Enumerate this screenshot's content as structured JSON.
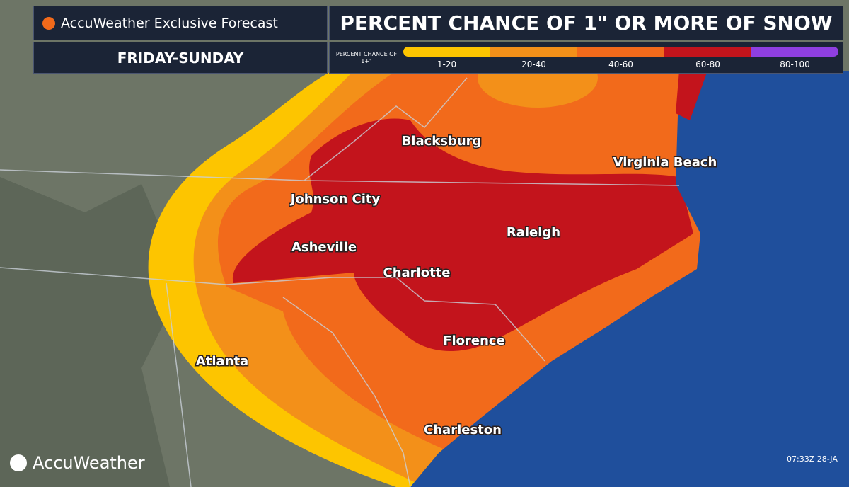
{
  "header": {
    "brand": "AccuWeather Exclusive Forecast",
    "title": "PERCENT CHANCE OF 1\" OR MORE OF SNOW",
    "period": "FRIDAY-SUNDAY"
  },
  "legend": {
    "title": "PERCENT CHANCE OF 1+\"",
    "items": [
      {
        "label": "1-20",
        "color": "#fdc500"
      },
      {
        "label": "20-40",
        "color": "#f39019"
      },
      {
        "label": "40-60",
        "color": "#f26a1b"
      },
      {
        "label": "60-80",
        "color": "#c3141c"
      },
      {
        "label": "80-100",
        "color": "#8f3fe0"
      }
    ]
  },
  "cities": [
    "Blacksburg",
    "Virginia Beach",
    "Johnson City",
    "Raleigh",
    "Asheville",
    "Charlotte",
    "Florence",
    "Atlanta",
    "Charleston"
  ],
  "footer": {
    "logo": "AccuWeather",
    "timestamp": "07:33Z 28-JA"
  }
}
